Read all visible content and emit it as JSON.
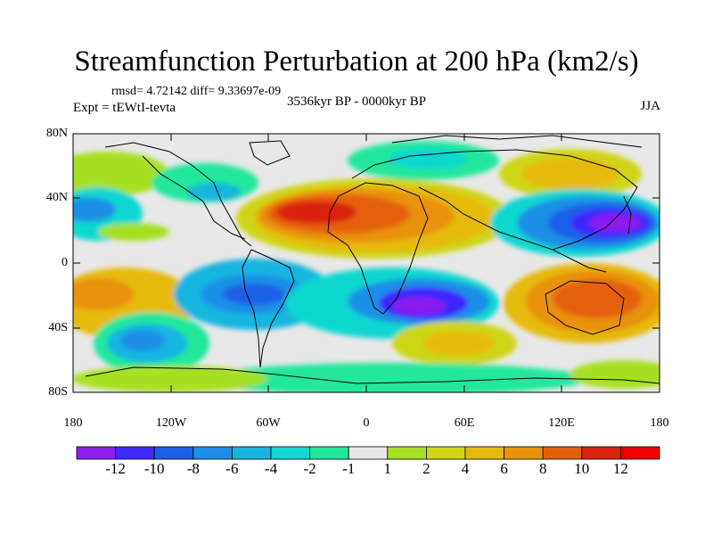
{
  "map": {
    "title": "Streamfunction Perturbation at 200 hPa (km2/s)",
    "stats": "rmsd= 4.72142 diff= 9.33697e-09",
    "left_label": "Expt = tEWtI-tevta",
    "center_label": "3536kyr BP - 0000kyr BP",
    "right_label": "JJA",
    "lat_ticks": [
      "80N",
      "40N",
      "0",
      "40S",
      "80S"
    ],
    "lon_ticks": [
      "180",
      "120W",
      "60W",
      "0",
      "60E",
      "120E",
      "180"
    ]
  },
  "colorbar": {
    "labels": [
      "-12",
      "-10",
      "-8",
      "-6",
      "-4",
      "-2",
      "-1",
      "1",
      "2",
      "4",
      "6",
      "8",
      "10",
      "12"
    ],
    "colors": [
      "#8a1ff0",
      "#3d28ff",
      "#1f5fe8",
      "#1d8fe6",
      "#15b5e0",
      "#11d8d0",
      "#20e79c",
      "#e8e8e8",
      "#a7e022",
      "#cfd614",
      "#e6b90e",
      "#e8920b",
      "#e5600a",
      "#d8230d",
      "#ee0000"
    ]
  }
}
